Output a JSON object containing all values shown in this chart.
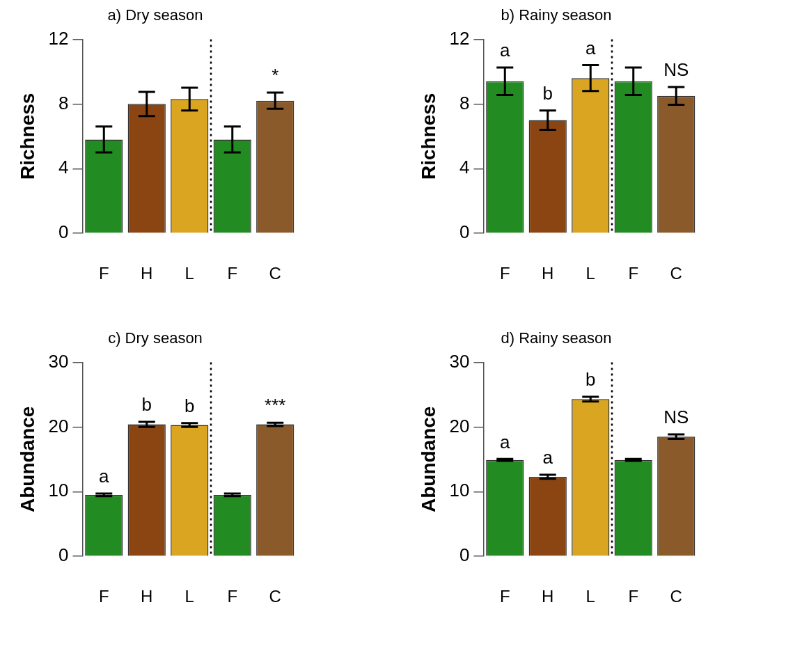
{
  "chart_data": [
    {
      "type": "bar",
      "title": "a) Dry season",
      "ylabel": "Richness",
      "categories": [
        "F",
        "H",
        "L",
        "F",
        "C"
      ],
      "values": [
        5.8,
        8.0,
        8.3,
        5.8,
        8.2
      ],
      "errors": [
        0.8,
        0.75,
        0.7,
        0.8,
        0.5
      ],
      "colors": [
        "#228b22",
        "#8b4513",
        "#daa520",
        "#228b22",
        "#8b5a2b"
      ],
      "ylim": [
        0,
        12
      ],
      "yticks": [
        0,
        4,
        8,
        12
      ],
      "grid": false,
      "legend": false,
      "value_labels": [
        null,
        null,
        null,
        null,
        "*"
      ]
    },
    {
      "type": "bar",
      "title": "b) Rainy season",
      "ylabel": "Richness",
      "categories": [
        "F",
        "H",
        "L",
        "F",
        "C"
      ],
      "values": [
        9.4,
        7.0,
        9.6,
        9.4,
        8.5
      ],
      "errors": [
        0.85,
        0.6,
        0.8,
        0.85,
        0.55
      ],
      "colors": [
        "#228b22",
        "#8b4513",
        "#daa520",
        "#228b22",
        "#8b5a2b"
      ],
      "ylim": [
        0,
        12
      ],
      "yticks": [
        0,
        4,
        8,
        12
      ],
      "grid": false,
      "legend": false,
      "value_labels": [
        "a",
        "b",
        "a",
        null,
        "NS"
      ]
    },
    {
      "type": "bar",
      "title": "c) Dry season",
      "ylabel": "Abundance",
      "categories": [
        "F",
        "H",
        "L",
        "F",
        "C"
      ],
      "values": [
        9.5,
        20.4,
        20.3,
        9.5,
        20.4
      ],
      "errors": [
        0.2,
        0.4,
        0.3,
        0.2,
        0.25
      ],
      "colors": [
        "#228b22",
        "#8b4513",
        "#daa520",
        "#228b22",
        "#8b5a2b"
      ],
      "ylim": [
        0,
        30
      ],
      "yticks": [
        0,
        10,
        20,
        30
      ],
      "grid": false,
      "legend": false,
      "value_labels": [
        "a",
        "b",
        "b",
        null,
        "***"
      ]
    },
    {
      "type": "bar",
      "title": "d) Rainy season",
      "ylabel": "Abundance",
      "categories": [
        "F",
        "H",
        "L",
        "F",
        "C"
      ],
      "values": [
        14.9,
        12.3,
        24.3,
        14.9,
        18.5
      ],
      "errors": [
        0.15,
        0.3,
        0.35,
        0.15,
        0.35
      ],
      "colors": [
        "#228b22",
        "#8b4513",
        "#daa520",
        "#228b22",
        "#8b5a2b"
      ],
      "ylim": [
        0,
        30
      ],
      "yticks": [
        0,
        10,
        20,
        30
      ],
      "grid": false,
      "legend": false,
      "value_labels": [
        "a",
        "a",
        "b",
        null,
        "NS"
      ]
    }
  ]
}
